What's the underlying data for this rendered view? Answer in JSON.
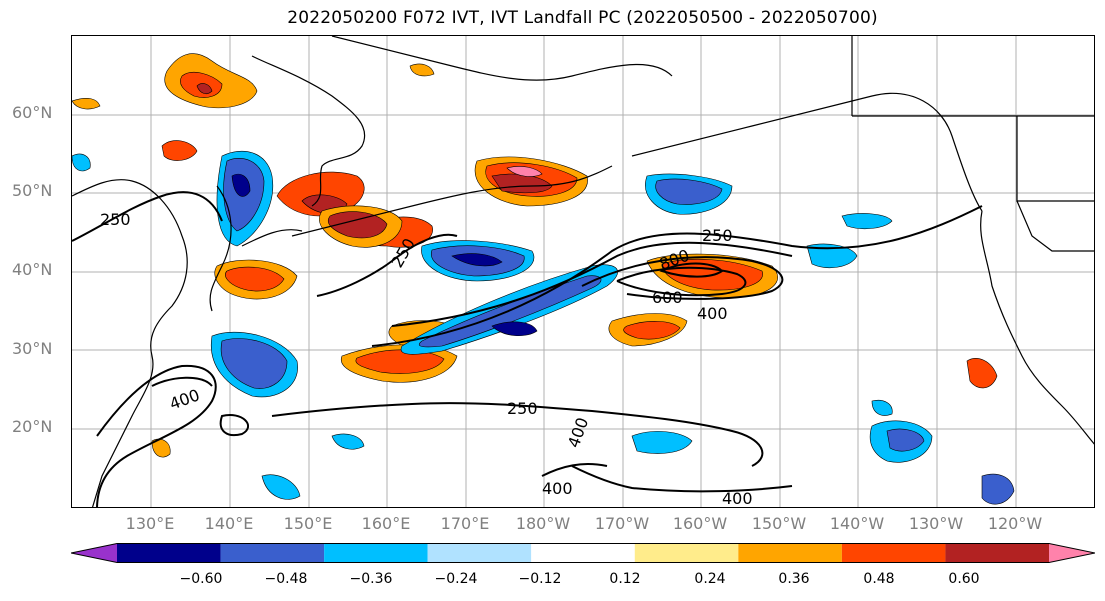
{
  "title": "2022050200 F072 IVT, IVT Landfall PC (2022050500 - 2022050700)",
  "lat_labels": [
    "60°N",
    "50°N",
    "40°N",
    "30°N",
    "20°N"
  ],
  "lon_labels": [
    "130°E",
    "140°E",
    "150°E",
    "160°E",
    "170°E",
    "180°W",
    "170°W",
    "160°W",
    "150°W",
    "140°W",
    "130°W",
    "120°W"
  ],
  "contour_labels": [
    "250",
    "250",
    "250",
    "250",
    "400",
    "400",
    "400",
    "400",
    "400",
    "600",
    "800"
  ],
  "colorbar": {
    "tick_labels": [
      "−0.60",
      "−0.48",
      "−0.36",
      "−0.24",
      "−0.12",
      "0.12",
      "0.24",
      "0.36",
      "0.48",
      "0.60"
    ],
    "colors": [
      "#9932cc",
      "#00008b",
      "#3a5fcd",
      "#00bfff",
      "#b0e2ff",
      "#ffffff",
      "#ffec8b",
      "#ffa500",
      "#ff4500",
      "#b22222",
      "#ff82ab"
    ]
  },
  "colors": {
    "gridline": "#b0b0b0",
    "coastline": "#000000",
    "contour": "#000000"
  }
}
